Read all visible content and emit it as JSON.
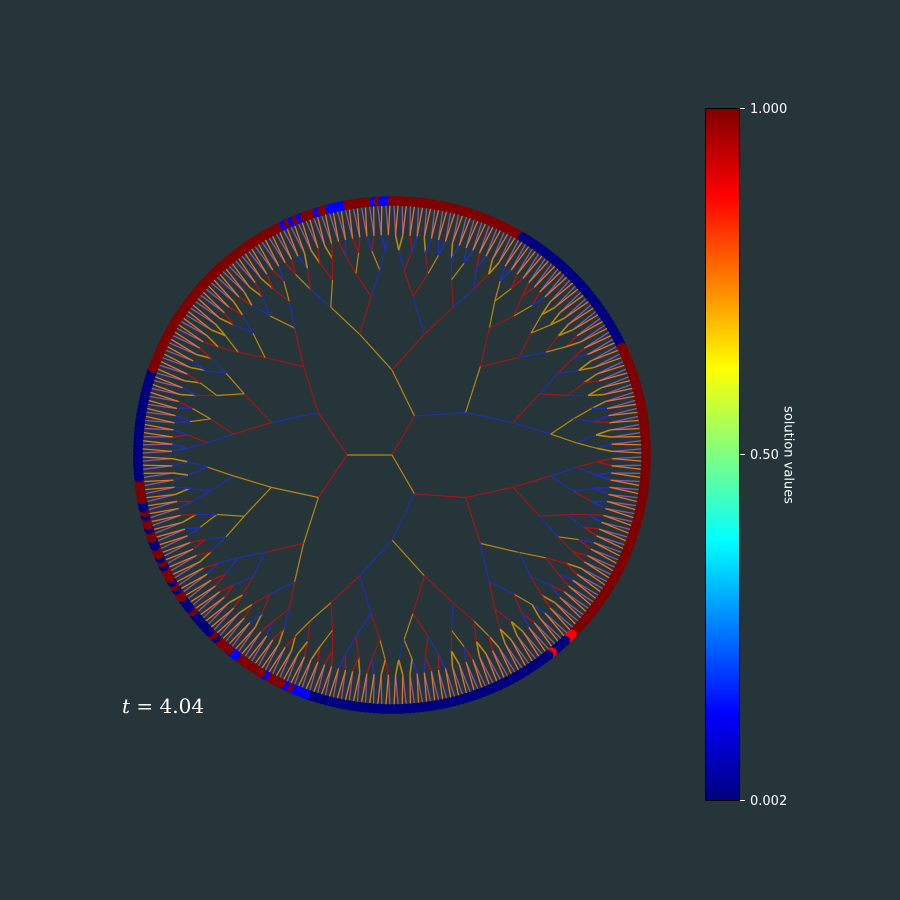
{
  "time_label": {
    "symbol": "t",
    "text": " = 4.04"
  },
  "colorbar": {
    "label": "solution values",
    "colormap": "jet",
    "ticks": [
      {
        "value": 1.0,
        "label": "1.000"
      },
      {
        "value": 0.5,
        "label": "0.50"
      },
      {
        "value": 0.002,
        "label": "0.002"
      }
    ],
    "range": [
      0.002,
      1.0
    ],
    "stops": [
      "#00007f",
      "#0000ff",
      "#007fff",
      "#00ffff",
      "#7fff7f",
      "#ffff00",
      "#ff7f00",
      "#ff0000",
      "#7f0000"
    ]
  },
  "tree": {
    "levels": 8,
    "root_branches": 3,
    "edge_colors": [
      "#b8860b",
      "#1f2fb0",
      "#a01515"
    ],
    "background": "#253539",
    "leaf_values": "mixed high (dark red) and low (dark blue) clusters around the rim"
  }
}
